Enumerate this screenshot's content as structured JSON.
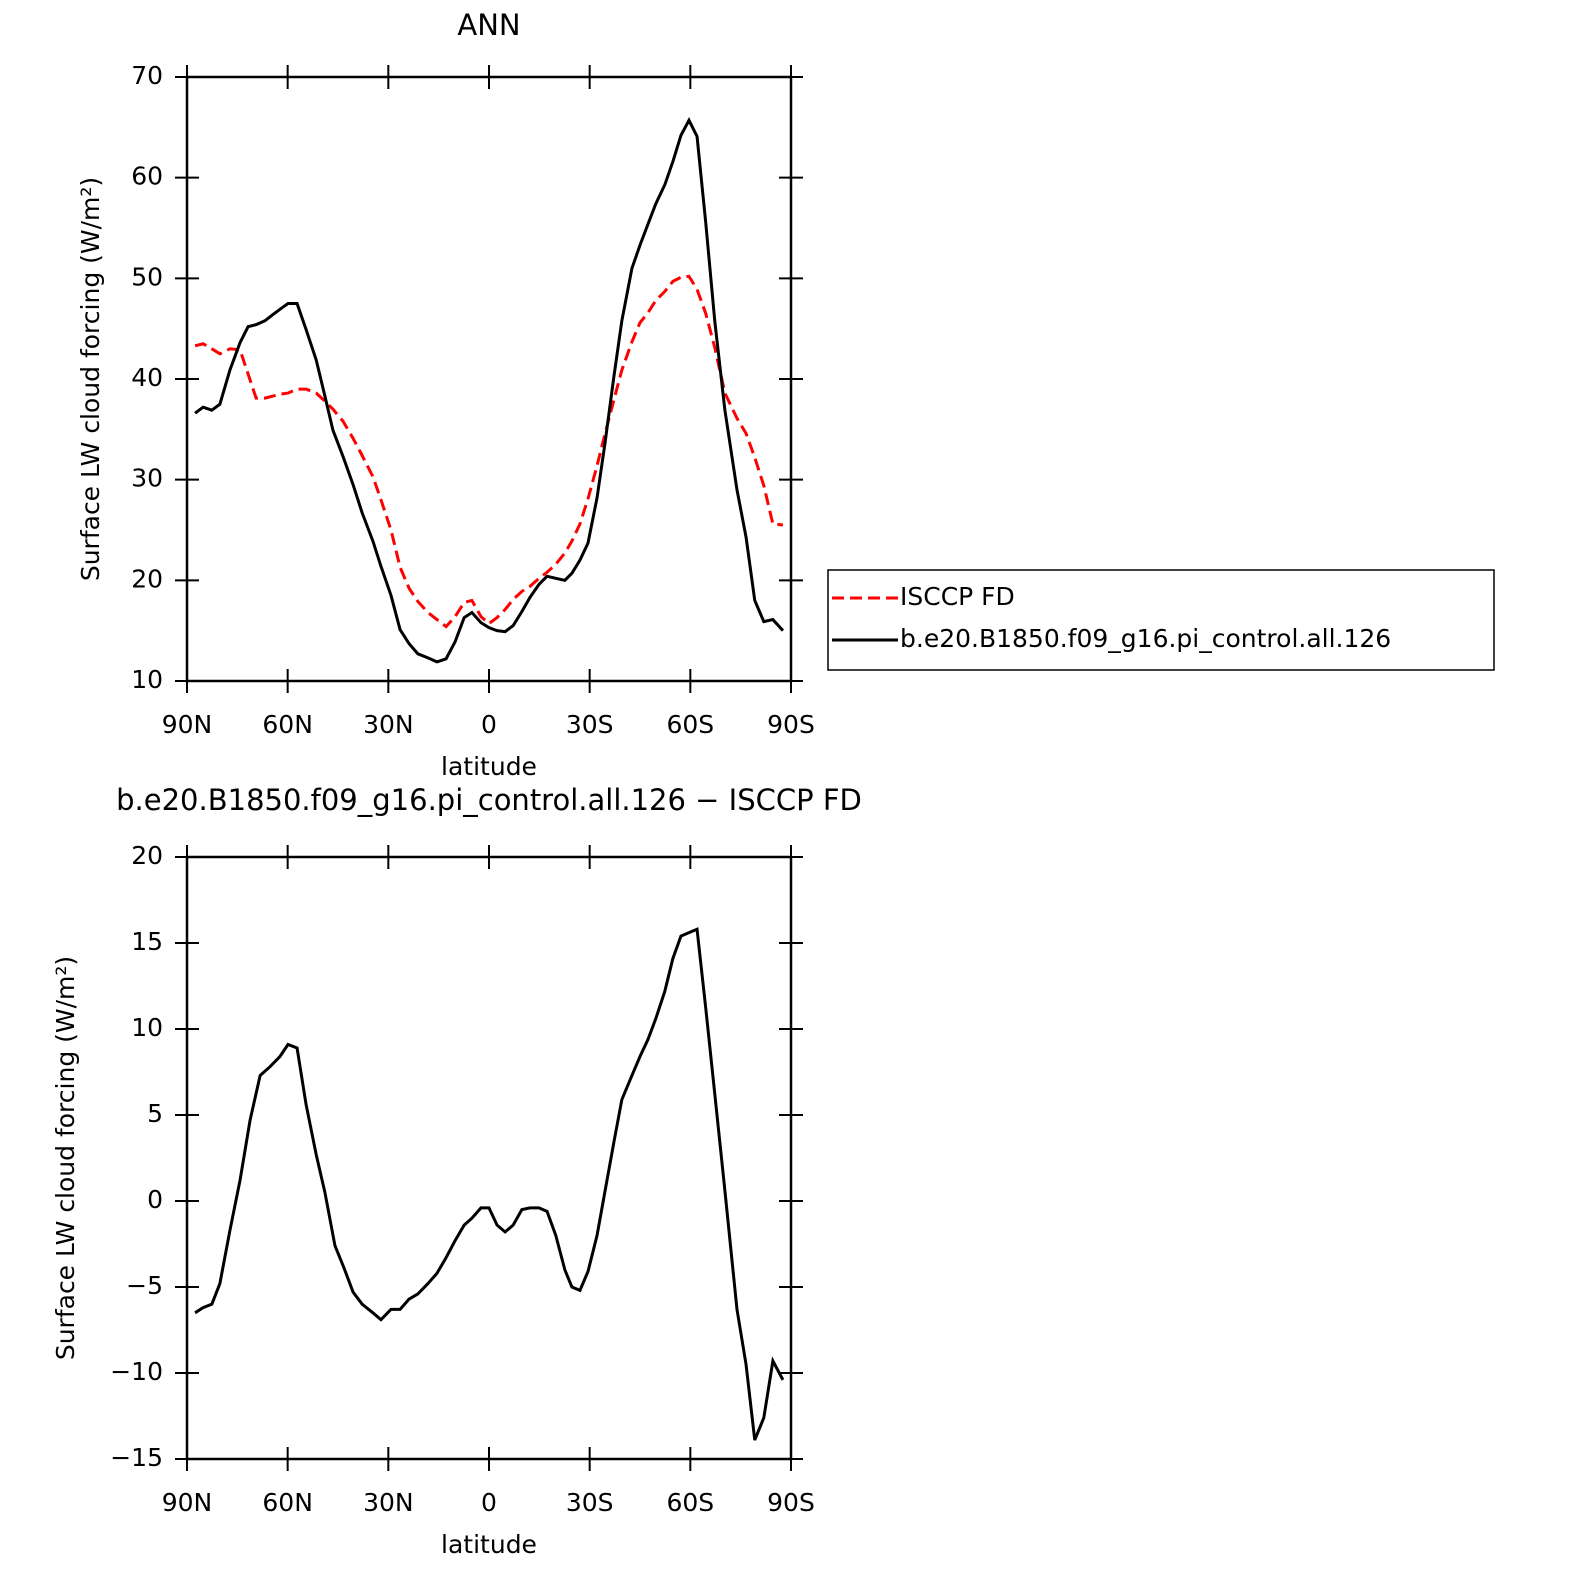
{
  "chart_data": [
    {
      "type": "line",
      "title": "ANN",
      "xlabel": "latitude",
      "ylabel": "Surface LW cloud forcing (W/m²)",
      "x": [
        87.6,
        85.2,
        82.6,
        80.2,
        77.2,
        74.2,
        71.8,
        69.4,
        66.7,
        64.4,
        62.0,
        59.9,
        57.2,
        54.5,
        51.5,
        48.9,
        46.5,
        43.5,
        40.5,
        37.8,
        34.6,
        32.2,
        29.2,
        26.5,
        23.8,
        21.2,
        18.2,
        15.5,
        12.8,
        10.1,
        7.4,
        5.1,
        2.4,
        0.0,
        -2.4,
        -4.8,
        -7.2,
        -9.8,
        -12.2,
        -14.9,
        -17.3,
        -19.9,
        -22.6,
        -24.7,
        -27.1,
        -29.5,
        -32.2,
        -34.6,
        -37.2,
        -39.6,
        -42.6,
        -45.0,
        -47.4,
        -49.7,
        -52.4,
        -54.8,
        -57.2,
        -59.6,
        -62.0,
        -64.6,
        -67.3,
        -70.3,
        -73.9,
        -76.6,
        -79.2,
        -81.9,
        -84.6,
        -87.6
      ],
      "series": [
        {
          "name": "ISCCP FD",
          "color": "#ff0000",
          "line_style": "dashed",
          "values": [
            43.3,
            43.5,
            43.0,
            42.5,
            43.0,
            42.9,
            40.5,
            38.1,
            38.1,
            38.3,
            38.5,
            38.6,
            39.0,
            39.0,
            38.6,
            37.8,
            37.0,
            35.8,
            34.1,
            32.4,
            30.3,
            28.0,
            25.0,
            21.3,
            19.2,
            17.9,
            16.8,
            16.1,
            15.4,
            16.4,
            17.8,
            18.0,
            16.4,
            15.7,
            16.3,
            17.1,
            18.1,
            18.9,
            19.4,
            20.2,
            20.8,
            21.6,
            22.7,
            23.9,
            25.6,
            28.1,
            31.4,
            34.6,
            37.9,
            40.9,
            43.7,
            45.6,
            46.6,
            47.8,
            48.7,
            49.7,
            50.1,
            50.2,
            48.9,
            46.5,
            43.1,
            38.6,
            36.1,
            34.6,
            32.2,
            29.4,
            25.6,
            25.5
          ]
        },
        {
          "name": "b.e20.B1850.f09_g16.pi_control.all.126",
          "color": "#000000",
          "line_style": "solid",
          "values": [
            36.6,
            37.2,
            36.9,
            37.5,
            40.9,
            43.6,
            45.2,
            45.4,
            45.8,
            46.4,
            47.0,
            47.5,
            47.5,
            44.9,
            41.9,
            38.3,
            34.9,
            32.3,
            29.5,
            26.7,
            23.9,
            21.4,
            18.5,
            15.1,
            13.7,
            12.7,
            12.3,
            11.9,
            12.2,
            13.9,
            16.3,
            16.8,
            15.8,
            15.3,
            15.0,
            14.9,
            15.5,
            16.9,
            18.3,
            19.6,
            20.4,
            20.2,
            20.0,
            20.7,
            22.0,
            23.7,
            28.2,
            33.7,
            40.2,
            45.8,
            51.0,
            53.3,
            55.4,
            57.4,
            59.3,
            61.6,
            64.2,
            65.7,
            64.1,
            55.5,
            45.7,
            36.9,
            29.0,
            24.3,
            18.0,
            15.9,
            16.1,
            15.0
          ]
        }
      ],
      "xlim": [
        90,
        -90
      ],
      "xticks": [
        {
          "value": 90,
          "label": "90N"
        },
        {
          "value": 60,
          "label": "60N"
        },
        {
          "value": 30,
          "label": "30N"
        },
        0,
        {
          "value": -30,
          "label": "30S"
        },
        {
          "value": -60,
          "label": "60S"
        },
        {
          "value": -90,
          "label": "90S"
        }
      ],
      "ylim": [
        10,
        70
      ],
      "yticks": [
        10,
        20,
        30,
        40,
        50,
        60,
        70
      ],
      "legend": "right"
    },
    {
      "type": "line",
      "title": "b.e20.B1850.f09_g16.pi_control.all.126 − ISCCP FD",
      "xlabel": "latitude",
      "ylabel": "Surface LW cloud forcing (W/m²)",
      "x": [
        87.6,
        85.2,
        82.6,
        80.2,
        77.2,
        74.2,
        71.2,
        68.2,
        65.3,
        62.3,
        59.9,
        57.2,
        54.5,
        51.5,
        48.9,
        45.9,
        43.2,
        40.5,
        37.8,
        34.6,
        32.2,
        29.2,
        26.5,
        23.8,
        21.2,
        18.2,
        15.5,
        12.8,
        10.1,
        7.4,
        5.1,
        2.4,
        0.0,
        -2.4,
        -4.8,
        -7.2,
        -9.8,
        -12.2,
        -14.9,
        -17.3,
        -19.9,
        -22.6,
        -24.7,
        -27.1,
        -29.5,
        -32.2,
        -34.6,
        -37.2,
        -39.6,
        -42.6,
        -45.0,
        -47.4,
        -49.7,
        -52.4,
        -54.8,
        -57.2,
        -59.6,
        -62.0,
        -64.6,
        -67.3,
        -70.3,
        -73.9,
        -76.6,
        -79.2,
        -81.9,
        -84.6,
        -87.6
      ],
      "series": [
        {
          "color": "#000000",
          "line_style": "solid",
          "values": [
            -6.5,
            -6.2,
            -6.0,
            -4.8,
            -1.7,
            1.2,
            4.7,
            7.3,
            7.8,
            8.4,
            9.1,
            8.9,
            5.6,
            2.7,
            0.5,
            -2.6,
            -3.9,
            -5.3,
            -6.0,
            -6.5,
            -6.9,
            -6.3,
            -6.3,
            -5.7,
            -5.4,
            -4.8,
            -4.2,
            -3.3,
            -2.3,
            -1.4,
            -1.0,
            -0.4,
            -0.4,
            -1.4,
            -1.8,
            -1.4,
            -0.5,
            -0.4,
            -0.4,
            -0.6,
            -2.0,
            -4.0,
            -5.0,
            -5.2,
            -4.1,
            -2.0,
            0.6,
            3.4,
            5.9,
            7.3,
            8.4,
            9.4,
            10.6,
            12.2,
            14.1,
            15.4,
            15.6,
            15.8,
            11.2,
            6.2,
            0.6,
            -6.3,
            -9.5,
            -13.9,
            -12.6,
            -9.3,
            -10.4
          ]
        }
      ],
      "xlim": [
        90,
        -90
      ],
      "xticks": [
        {
          "value": 90,
          "label": "90N"
        },
        {
          "value": 60,
          "label": "60N"
        },
        {
          "value": 30,
          "label": "30N"
        },
        0,
        {
          "value": -30,
          "label": "30S"
        },
        {
          "value": -60,
          "label": "60S"
        },
        {
          "value": -90,
          "label": "90S"
        }
      ],
      "ylim": [
        -15,
        20
      ],
      "yticks": [
        {
          "value": -15,
          "label": "−15"
        },
        {
          "value": -10,
          "label": "−10"
        },
        {
          "value": -5,
          "label": "−5"
        },
        0,
        5,
        10,
        15,
        20
      ]
    }
  ]
}
